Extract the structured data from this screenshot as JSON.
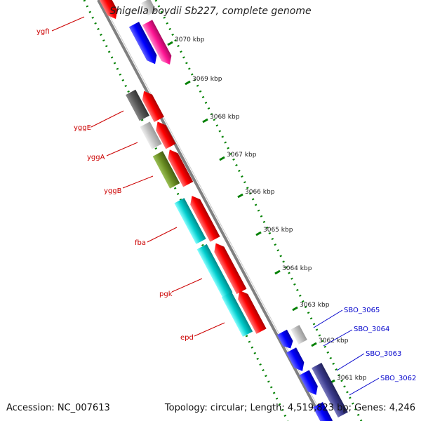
{
  "title": "Shigella boydii Sb227, complete genome",
  "footer": {
    "accession": "Accession: NC_007613",
    "topology": "Topology: circular; Length: 4,519,823 bp; Genes: 4,246"
  },
  "ruler": {
    "labels": [
      "3070 kbp",
      "3069 kbp",
      "3068 kbp",
      "3067 kbp",
      "3066 kbp",
      "3065 kbp",
      "3064 kbp",
      "3063 kbp",
      "3062 kbp",
      "3061 kbp"
    ]
  },
  "genes": {
    "left": [
      "ygfI",
      "yggE",
      "yggA",
      "yggB",
      "fba",
      "pgk",
      "epd"
    ],
    "right": [
      "SBO_3065",
      "SBO_3064",
      "SBO_3063",
      "SBO_3062"
    ]
  },
  "colors": {
    "red": "#ff0000",
    "blue": "#0000ff",
    "pink": "#ff1493",
    "cyan": "#00cccc",
    "olive": "#6b8e23",
    "darkgray": "#555555",
    "lightgray": "#c0c0c0",
    "navy": "#3a3a8c",
    "dots": "#008000",
    "backbone": "#808080"
  }
}
